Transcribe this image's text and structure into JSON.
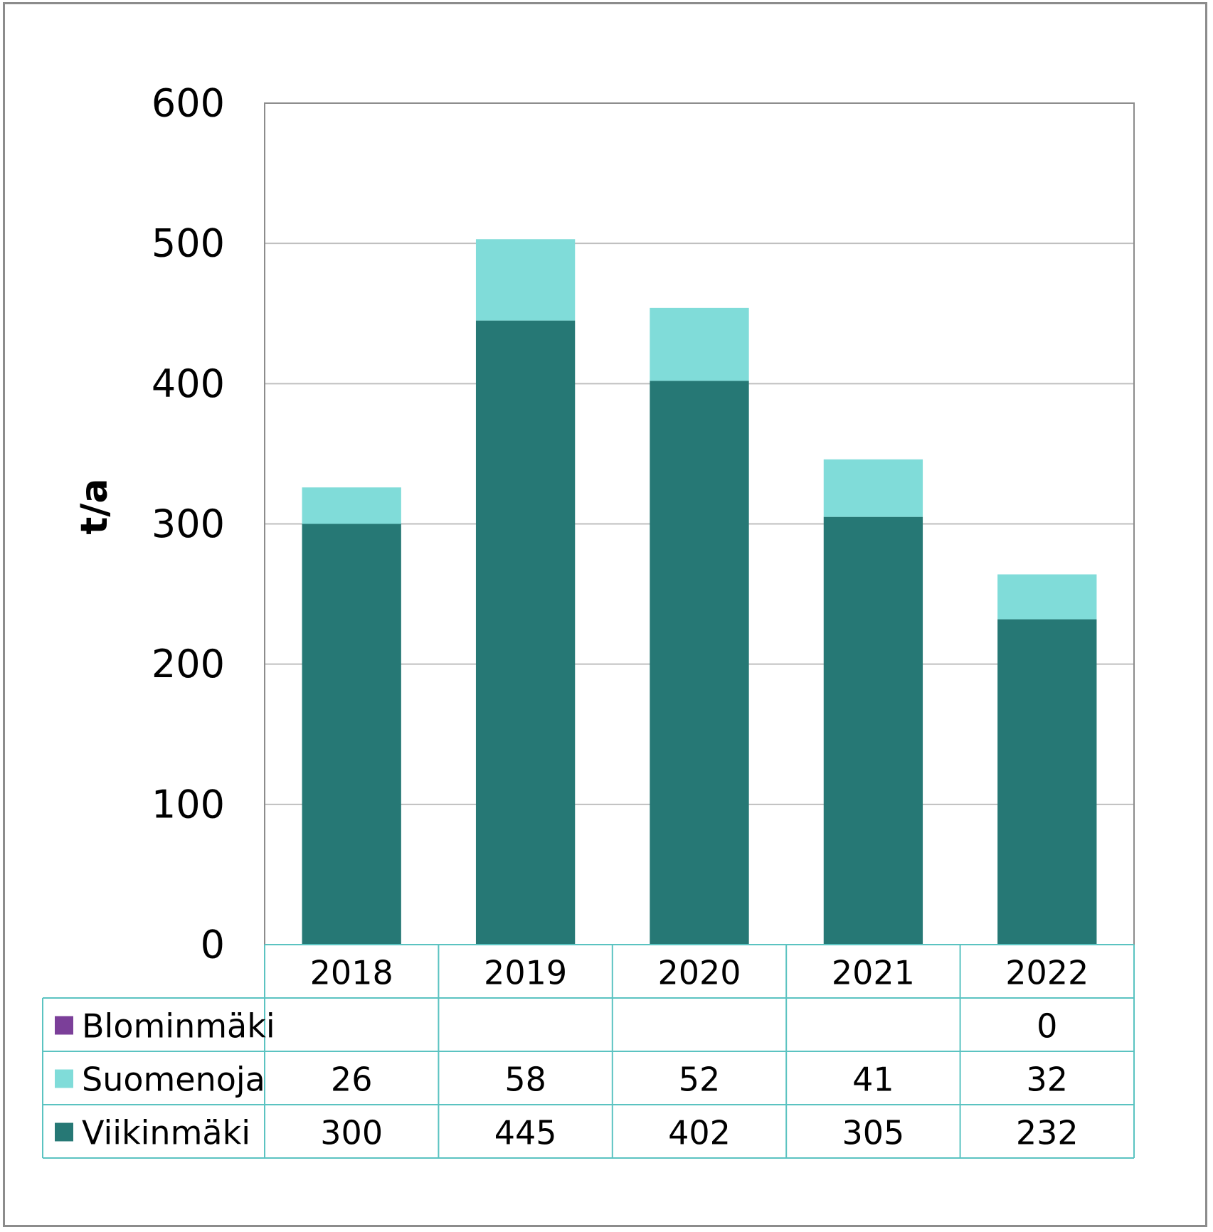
{
  "chart_data": {
    "type": "bar",
    "stacked": true,
    "categories": [
      "2018",
      "2019",
      "2020",
      "2021",
      "2022"
    ],
    "series": [
      {
        "name": "Blominmäki",
        "color": "#7b3f99",
        "values": [
          null,
          null,
          null,
          null,
          0
        ]
      },
      {
        "name": "Suomenoja",
        "color": "#80dcd9",
        "values": [
          26,
          58,
          52,
          41,
          32
        ]
      },
      {
        "name": "Viikinmäki",
        "color": "#267875",
        "values": [
          300,
          445,
          402,
          305,
          232
        ]
      }
    ],
    "stack_order": [
      "Viikinmäki",
      "Suomenoja",
      "Blominmäki"
    ],
    "ylabel": "t/a",
    "ylim": [
      0,
      600
    ],
    "yticks": [
      0,
      100,
      200,
      300,
      400,
      500,
      600
    ],
    "grid": true,
    "legend": "data-table-below",
    "data_table": true
  },
  "colors": {
    "gridline": "#bfbfbf",
    "plot_border": "#8c8c8c",
    "table_border": "#5bc3c1"
  }
}
